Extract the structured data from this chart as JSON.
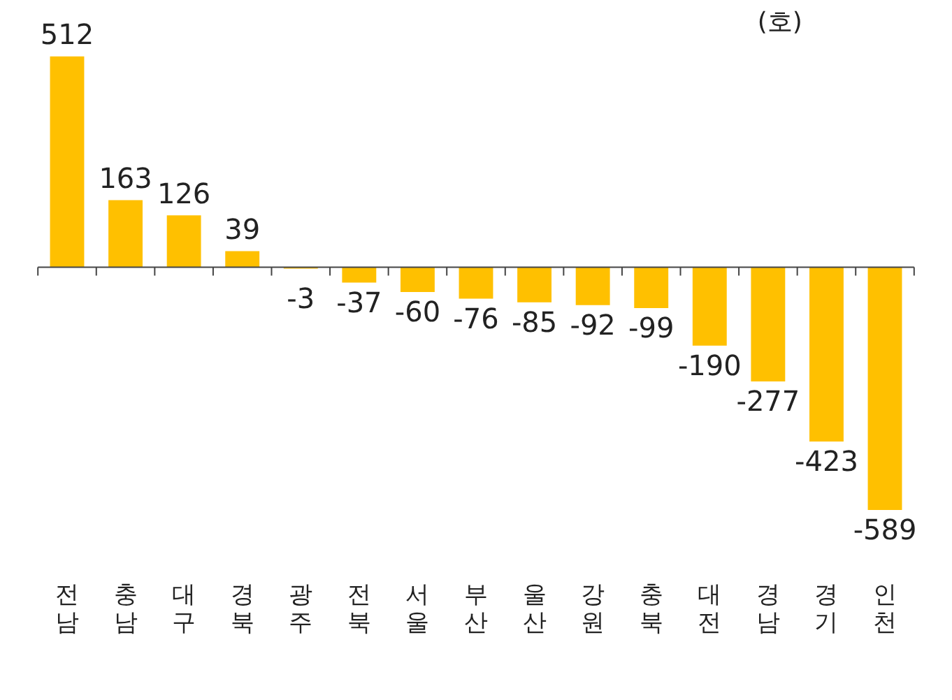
{
  "chart_data": {
    "type": "bar",
    "categories": [
      "전남",
      "충남",
      "대구",
      "경북",
      "광주",
      "전북",
      "서울",
      "부산",
      "울산",
      "강원",
      "충북",
      "대전",
      "경남",
      "경기",
      "인천"
    ],
    "values": [
      512,
      163,
      126,
      39,
      -3,
      -37,
      -60,
      -76,
      -85,
      -92,
      -99,
      -190,
      -277,
      -423,
      -589
    ],
    "color": "#ffc000",
    "ylim": [
      -600,
      520
    ],
    "data_labels": true,
    "grid": false,
    "legend": false,
    "tick_labels": "x",
    "annotations": [
      "(호)"
    ]
  }
}
